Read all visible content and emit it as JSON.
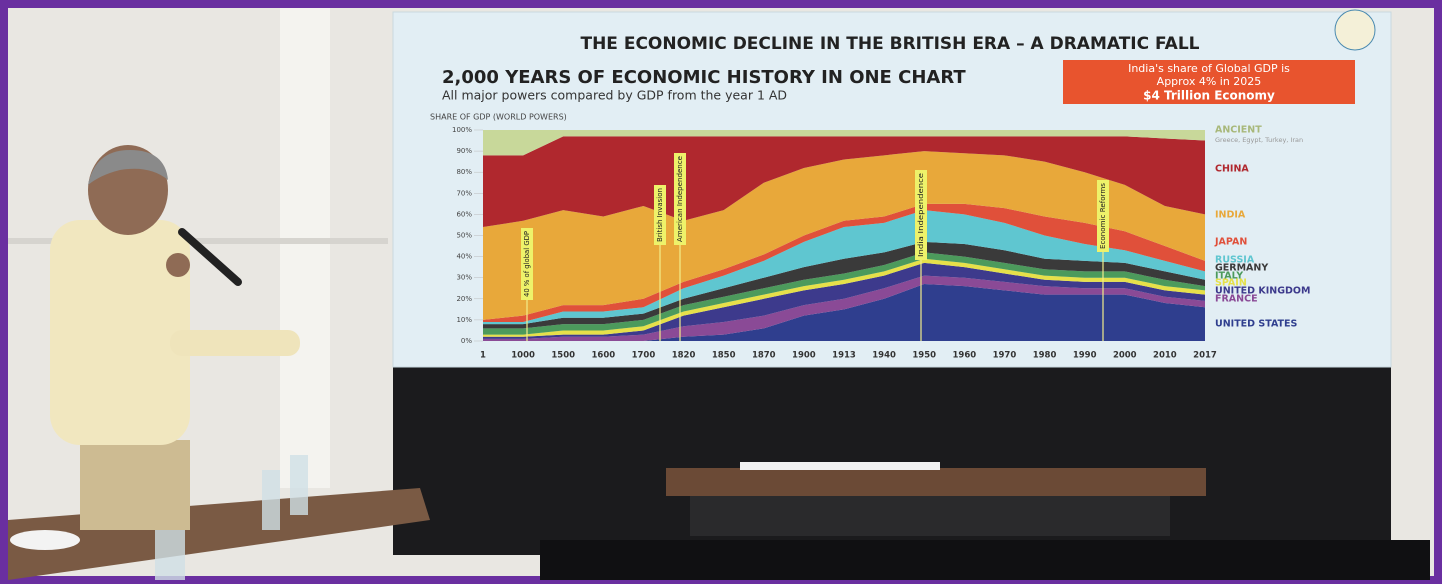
{
  "chart_data": {
    "type": "area",
    "stacked": true,
    "title": "THE ECONOMIC DECLINE IN THE BRITISH ERA – A DRAMATIC FALL",
    "subtitle": "2,000 YEARS OF ECONOMIC HISTORY IN ONE CHART",
    "caption": "All major powers compared by GDP from the year 1 AD",
    "y_label": "SHARE OF GDP (WORLD POWERS)",
    "callout": [
      "India's share of Global GDP is",
      "Approx 4% in 2025",
      "$4 Trillion Economy"
    ],
    "categories": [
      "1",
      "1000",
      "1500",
      "1600",
      "1700",
      "1820",
      "1850",
      "1870",
      "1900",
      "1913",
      "1940",
      "1950",
      "1960",
      "1970",
      "1980",
      "1990",
      "2000",
      "2010",
      "2017"
    ],
    "ylim": [
      0,
      100
    ],
    "yticks": [
      {
        "value": 0,
        "label": "0%"
      },
      {
        "value": 10,
        "label": "10%"
      },
      {
        "value": 20,
        "label": "20%"
      },
      {
        "value": 30,
        "label": "30%"
      },
      {
        "value": 40,
        "label": "40%"
      },
      {
        "value": 50,
        "label": "50%"
      },
      {
        "value": 60,
        "label": "60%"
      },
      {
        "value": 70,
        "label": "70%"
      },
      {
        "value": 80,
        "label": "80%"
      },
      {
        "value": 90,
        "label": "90%"
      },
      {
        "value": 100,
        "label": "100%"
      }
    ],
    "series": [
      {
        "name": "UNITED STATES",
        "color": "#2f3e8e",
        "values": [
          0,
          0,
          0,
          0,
          0,
          2,
          3,
          6,
          12,
          15,
          20,
          27,
          26,
          24,
          22,
          22,
          22,
          18,
          16
        ]
      },
      {
        "name": "FRANCE",
        "color": "#8a4a96",
        "values": [
          1,
          1,
          2,
          2,
          3,
          5,
          6,
          6,
          5,
          5,
          5,
          4,
          4,
          4,
          4,
          3,
          3,
          3,
          3
        ]
      },
      {
        "name": "UNITED KINGDOM",
        "color": "#3d3a8c",
        "values": [
          1,
          1,
          1,
          1,
          2,
          5,
          7,
          8,
          7,
          7,
          6,
          6,
          5,
          4,
          3,
          3,
          3,
          3,
          3
        ]
      },
      {
        "name": "SPAIN",
        "color": "#e6e04a",
        "values": [
          1,
          1,
          2,
          2,
          2,
          2,
          2,
          2,
          2,
          2,
          2,
          2,
          2,
          2,
          2,
          2,
          2,
          2,
          2
        ]
      },
      {
        "name": "ITALY",
        "color": "#4c9a5c",
        "values": [
          3,
          3,
          3,
          3,
          3,
          3,
          3,
          3,
          3,
          3,
          3,
          3,
          3,
          3,
          3,
          3,
          3,
          3,
          2
        ]
      },
      {
        "name": "GERMANY",
        "color": "#3a3a3a",
        "values": [
          2,
          2,
          3,
          3,
          3,
          3,
          4,
          5,
          6,
          7,
          6,
          5,
          6,
          6,
          5,
          5,
          4,
          4,
          3
        ]
      },
      {
        "name": "RUSSIA",
        "color": "#5fc6d0",
        "values": [
          1,
          1,
          3,
          3,
          3,
          5,
          6,
          8,
          12,
          15,
          14,
          15,
          14,
          13,
          11,
          8,
          6,
          5,
          4
        ]
      },
      {
        "name": "JAPAN",
        "color": "#e0503a",
        "values": [
          1,
          3,
          3,
          3,
          4,
          3,
          3,
          3,
          3,
          3,
          3,
          3,
          5,
          7,
          9,
          10,
          9,
          7,
          5
        ]
      },
      {
        "name": "INDIA",
        "color": "#e8a83a",
        "values": [
          44,
          45,
          45,
          42,
          44,
          29,
          28,
          34,
          32,
          29,
          29,
          25,
          24,
          25,
          26,
          24,
          22,
          19,
          22
        ]
      },
      {
        "name": "CHINA",
        "color": "#b0282e",
        "values": [
          34,
          31,
          35,
          38,
          33,
          40,
          35,
          22,
          15,
          11,
          9,
          7,
          8,
          9,
          12,
          17,
          23,
          32,
          35
        ]
      },
      {
        "name": "ANCIENT",
        "note": "Greece, Egypt, Turkey, Iran",
        "color": "#c8d89a",
        "values": [
          12,
          12,
          3,
          3,
          3,
          3,
          3,
          3,
          3,
          3,
          3,
          3,
          3,
          3,
          3,
          3,
          3,
          4,
          5
        ]
      }
    ],
    "annotations": [
      "40 % of global GDP",
      "British Invasion",
      "American Independence",
      "India Independence",
      "Economic Reforms"
    ]
  }
}
